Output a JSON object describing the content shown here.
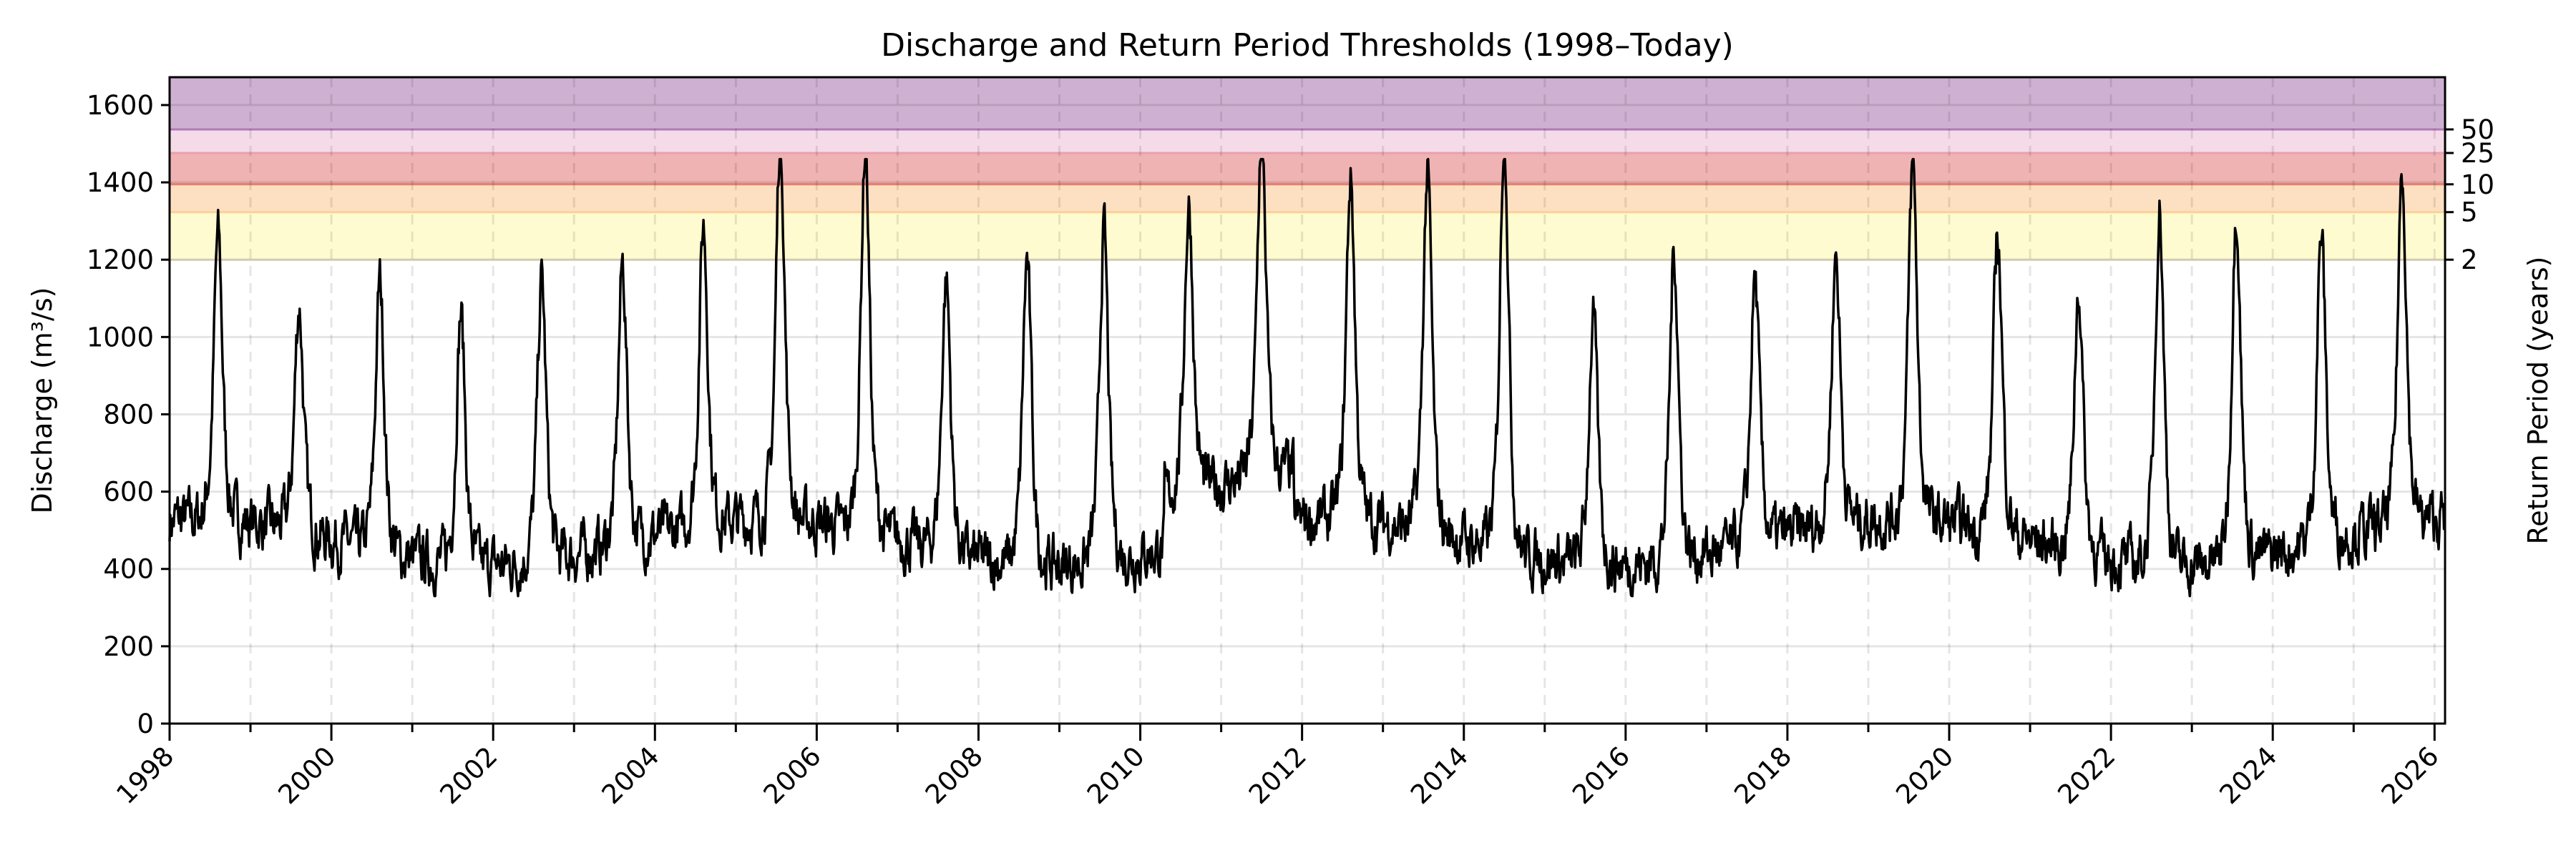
{
  "chart_data": {
    "type": "line",
    "title": "Discharge and Return Period Thresholds (1998–Today)",
    "xlabel": "",
    "ylabel": "Discharge (m³/s)",
    "y2label": "Return Period (years)",
    "ylim": [
      0,
      1672
    ],
    "xlim": [
      1998.0,
      2026.13
    ],
    "yticks": [
      0,
      200,
      400,
      600,
      800,
      1000,
      1200,
      1400,
      1600
    ],
    "xticks": [
      "1998",
      "2000",
      "2002",
      "2004",
      "2006",
      "2008",
      "2010",
      "2012",
      "2014",
      "2016",
      "2018",
      "2020",
      "2022",
      "2024",
      "2026"
    ],
    "grid": true,
    "return_periods": [
      {
        "label": "2",
        "years": 2,
        "value": 1200,
        "color": "#fffbd0"
      },
      {
        "label": "5",
        "years": 5,
        "value": 1323,
        "color": "#fde0c2"
      },
      {
        "label": "10",
        "years": 10,
        "value": 1395,
        "color": "#f0b3b3"
      },
      {
        "label": "25",
        "years": 25,
        "value": 1476,
        "color": "#f5dbe8"
      },
      {
        "label": "50",
        "years": 50,
        "value": 1537,
        "color": "#ceb1d2"
      }
    ],
    "series": [
      {
        "name": "Discharge",
        "color": "#000000",
        "annual_peaks": [
          {
            "x": 1998.6,
            "y": 1195
          },
          {
            "x": 1999.6,
            "y": 1030
          },
          {
            "x": 2000.6,
            "y": 1080
          },
          {
            "x": 2001.6,
            "y": 1005
          },
          {
            "x": 2002.6,
            "y": 1080
          },
          {
            "x": 2003.6,
            "y": 1120
          },
          {
            "x": 2004.6,
            "y": 1220
          },
          {
            "x": 2005.55,
            "y": 1440
          },
          {
            "x": 2006.6,
            "y": 1405
          },
          {
            "x": 2007.6,
            "y": 1085
          },
          {
            "x": 2008.6,
            "y": 1125
          },
          {
            "x": 2009.55,
            "y": 1195
          },
          {
            "x": 2010.6,
            "y": 1275
          },
          {
            "x": 2011.5,
            "y": 1460
          },
          {
            "x": 2012.6,
            "y": 1335
          },
          {
            "x": 2013.55,
            "y": 1340
          },
          {
            "x": 2014.5,
            "y": 1450
          },
          {
            "x": 2015.6,
            "y": 990
          },
          {
            "x": 2016.6,
            "y": 1150
          },
          {
            "x": 2017.6,
            "y": 1085
          },
          {
            "x": 2018.6,
            "y": 1150
          },
          {
            "x": 2019.55,
            "y": 1370
          },
          {
            "x": 2020.6,
            "y": 1200
          },
          {
            "x": 2021.6,
            "y": 1065
          },
          {
            "x": 2022.6,
            "y": 1255
          },
          {
            "x": 2023.55,
            "y": 1260
          },
          {
            "x": 2024.6,
            "y": 1195
          },
          {
            "x": 2025.6,
            "y": 1355
          }
        ],
        "baseflow_range": [
          330,
          650
        ]
      }
    ]
  }
}
